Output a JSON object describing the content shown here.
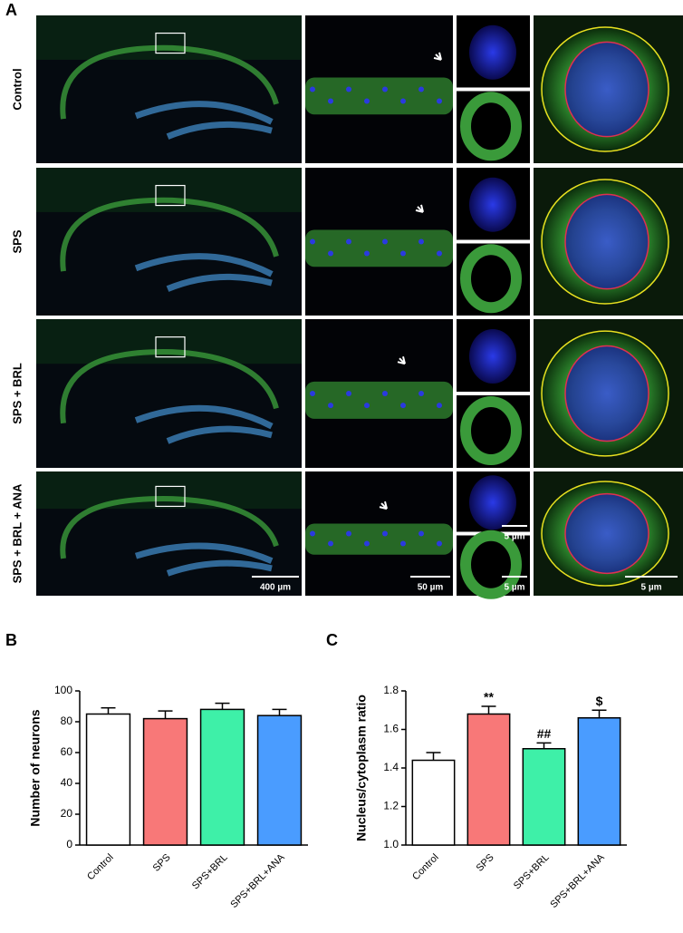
{
  "panel_labels": [
    "A",
    "B",
    "C"
  ],
  "panel_a": {
    "row_labels": [
      "Control",
      "SPS",
      "SPS + BRL",
      "SPS + BRL + ANA"
    ],
    "scale_bars": [
      "400 µm",
      "50 µm",
      "5 µm",
      "5 µm",
      "5 µm"
    ]
  },
  "chart_data": [
    {
      "type": "bar",
      "ylabel": "Number of neurons",
      "categories": [
        "Control",
        "SPS",
        "SPS+BRL",
        "SPS+BRL+ANA"
      ],
      "values": [
        85,
        82,
        88,
        84
      ],
      "errors": [
        4,
        5,
        4,
        4
      ],
      "colors": [
        "#ffffff",
        "#f87878",
        "#3ef0a8",
        "#4a9cff"
      ],
      "ylim": [
        0,
        100
      ],
      "yticks": [
        0,
        20,
        40,
        60,
        80,
        100
      ]
    },
    {
      "type": "bar",
      "ylabel": "Nucleus/cytoplasm ratio",
      "categories": [
        "Control",
        "SPS",
        "SPS+BRL",
        "SPS+BRL+ANA"
      ],
      "values": [
        1.44,
        1.68,
        1.5,
        1.66
      ],
      "errors": [
        0.04,
        0.04,
        0.03,
        0.04
      ],
      "colors": [
        "#ffffff",
        "#f87878",
        "#3ef0a8",
        "#4a9cff"
      ],
      "annotations": [
        null,
        "**",
        "##",
        "$"
      ],
      "ylim": [
        1,
        1.8
      ],
      "yticks": [
        {
          "value": 1,
          "label": "1.0"
        },
        1.2,
        1.4,
        1.6,
        1.8
      ]
    }
  ]
}
